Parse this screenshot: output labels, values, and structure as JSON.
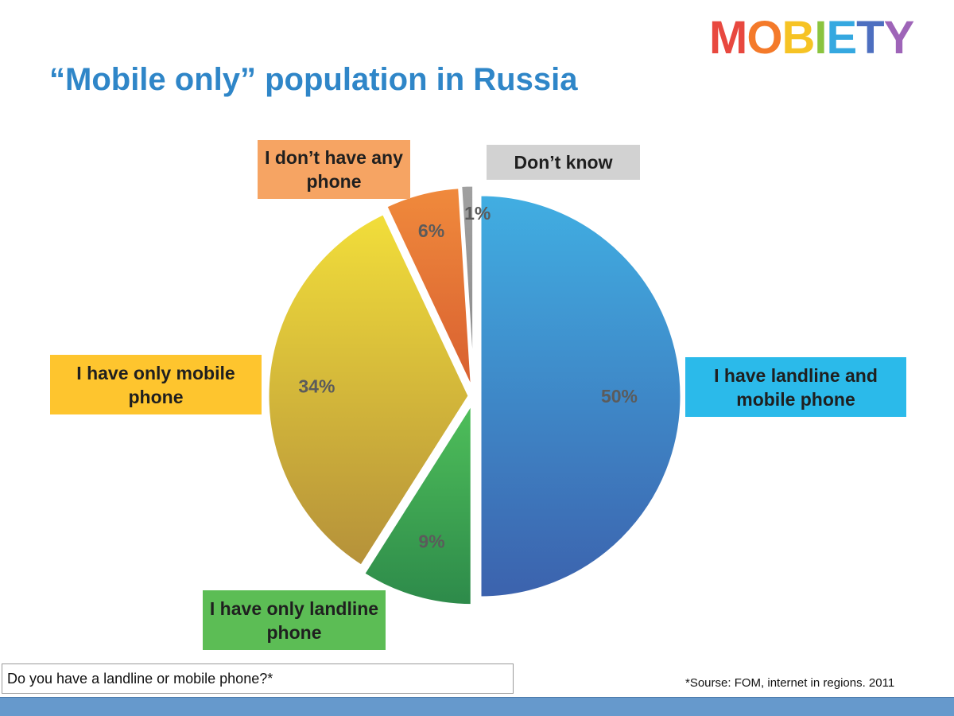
{
  "brand": {
    "logo_letters": [
      "M",
      "O",
      "B",
      "I",
      "E",
      "T",
      "Y"
    ],
    "logo_colors": [
      "#e8483f",
      "#f47a2a",
      "#f6c324",
      "#8bc43f",
      "#35a8e0",
      "#4d6fc0",
      "#9e64b8"
    ]
  },
  "question": "Do you have a landline or mobile phone?*",
  "source": "*Sourse: FOM, internet in regions. 2011",
  "chart_data": {
    "type": "pie",
    "title": "“Mobile only” population in Russia",
    "slices": [
      {
        "label": "I have landline and mobile phone",
        "value": 50,
        "value_label": "50%",
        "color_top": "#41aee2",
        "color_bottom": "#3c62ad",
        "callout_bg": "#2bbaea"
      },
      {
        "label": "I have only landline phone",
        "value": 9,
        "value_label": "9%",
        "color_top": "#4fbf5a",
        "color_bottom": "#2d8a4a",
        "callout_bg": "#5cbd55"
      },
      {
        "label": "I have only mobile phone",
        "value": 34,
        "value_label": "34%",
        "color_top": "#f2de3a",
        "color_bottom": "#b5913a",
        "callout_bg": "#fec52e"
      },
      {
        "label": "I don’t have any phone",
        "value": 6,
        "value_label": "6%",
        "color_top": "#f08a3c",
        "color_bottom": "#d85f30",
        "callout_bg": "#f6a463"
      },
      {
        "label": "Don’t know",
        "value": 1,
        "value_label": "1%",
        "color_top": "#a0a0a0",
        "color_bottom": "#8a8a8a",
        "callout_bg": "#d2d2d2"
      }
    ]
  }
}
